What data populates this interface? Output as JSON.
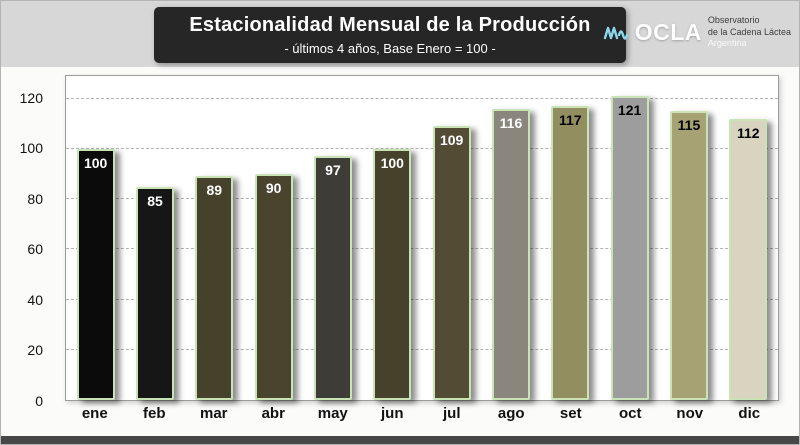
{
  "header": {
    "title": "Estacionalidad Mensual de la Producción",
    "subtitle": "- últimos 4 años, Base Enero = 100 -"
  },
  "logo": {
    "brand": "OCLA",
    "org_line1": "Observatorio",
    "org_line2": "de la Cadena Láctea",
    "country": "Argentina",
    "icon_color": "#8bd8ec"
  },
  "chart_data": {
    "type": "bar",
    "title": "Estacionalidad Mensual de la Producción",
    "subtitle": "- últimos 4 años, Base Enero = 100 -",
    "categories": [
      "ene",
      "feb",
      "mar",
      "abr",
      "may",
      "jun",
      "jul",
      "ago",
      "set",
      "oct",
      "nov",
      "dic"
    ],
    "values": [
      100,
      85,
      89,
      90,
      97,
      100,
      109,
      116,
      117,
      121,
      115,
      112
    ],
    "bar_colors": [
      "#0b0b0b",
      "#161616",
      "#46412b",
      "#49442e",
      "#3e3c37",
      "#46412b",
      "#524c34",
      "#8a867e",
      "#938e60",
      "#9d9d9d",
      "#a6a273",
      "#d8d4c0"
    ],
    "label_colors": [
      "#ffffff",
      "#ffffff",
      "#ffffff",
      "#ffffff",
      "#ffffff",
      "#ffffff",
      "#ffffff",
      "#ffffff",
      "#000000",
      "#000000",
      "#000000",
      "#000000"
    ],
    "bar_border_color": "#c9e3b4",
    "xlabel": "",
    "ylabel": "",
    "yticks": [
      0,
      20,
      40,
      60,
      80,
      100,
      120
    ],
    "ylim": [
      0,
      129
    ],
    "grid": "horizontal dashed",
    "legend": "none"
  }
}
